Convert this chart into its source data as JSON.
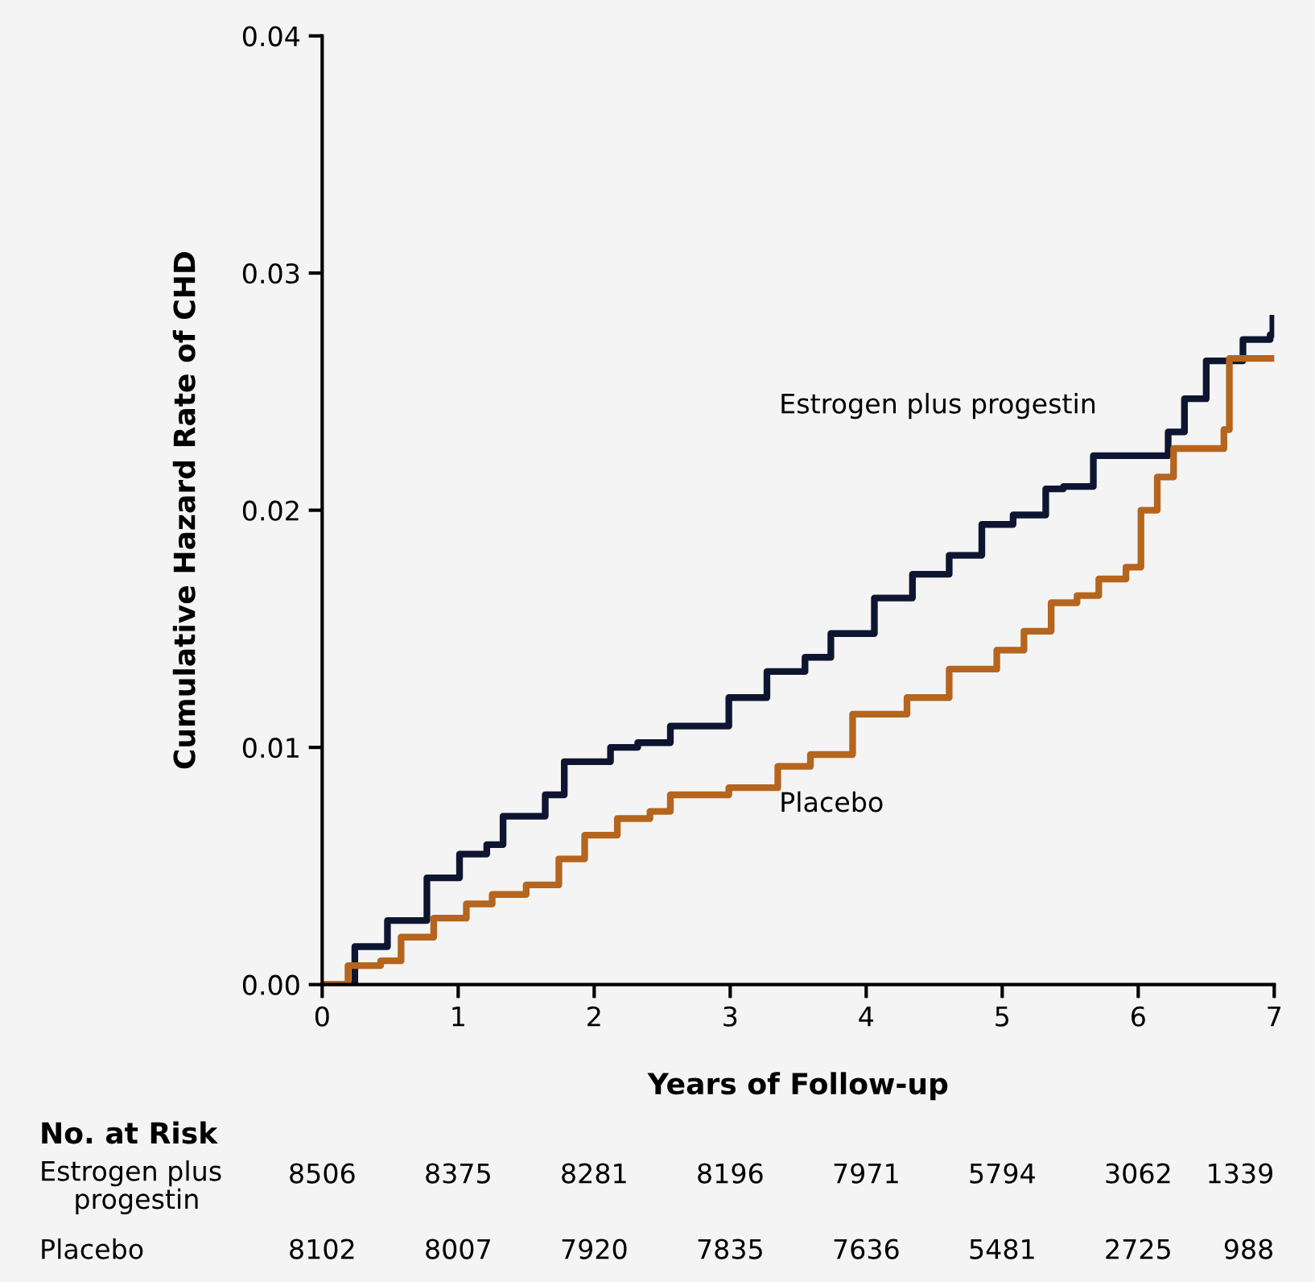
{
  "chart_data": {
    "type": "step",
    "xlabel": "Years of Follow-up",
    "ylabel": "Cumulative Hazard Rate of CHD",
    "xlim": [
      0,
      7
    ],
    "ylim": [
      0,
      0.04
    ],
    "xticks": [
      0,
      1,
      2,
      3,
      4,
      5,
      6,
      7
    ],
    "yticks": [
      {
        "value": 0,
        "label": "0.00"
      },
      0.01,
      0.02,
      0.03,
      0.04
    ],
    "grid": false,
    "legend": false,
    "series": [
      {
        "name": "Estrogen plus progestin",
        "color": "#0d1530",
        "x": [
          0,
          0.24,
          0.48,
          0.77,
          1.01,
          1.21,
          1.33,
          1.45,
          1.64,
          1.78,
          1.98,
          2.12,
          2.32,
          2.56,
          2.8,
          2.99,
          3.27,
          3.55,
          3.74,
          4.06,
          4.34,
          4.61,
          4.85,
          5.08,
          5.32,
          5.45,
          5.67,
          5.99,
          6.22,
          6.34,
          6.5,
          6.67,
          6.77,
          6.97,
          6.99
        ],
        "values": [
          0,
          0.0016,
          0.0027,
          0.0045,
          0.0055,
          0.0059,
          0.0071,
          0.0071,
          0.008,
          0.0094,
          0.0094,
          0.01,
          0.0102,
          0.0109,
          0.0109,
          0.0121,
          0.0132,
          0.0138,
          0.0148,
          0.0163,
          0.0173,
          0.0181,
          0.0194,
          0.0198,
          0.0209,
          0.021,
          0.0223,
          0.0223,
          0.0233,
          0.0247,
          0.0263,
          0.0263,
          0.0272,
          0.0274,
          0.0281
        ]
      },
      {
        "name": "Placebo",
        "color": "#b5651d",
        "x": [
          0,
          0.19,
          0.43,
          0.58,
          0.82,
          1.06,
          1.25,
          1.5,
          1.74,
          1.93,
          2.17,
          2.41,
          2.56,
          2.99,
          3.35,
          3.59,
          3.9,
          4.3,
          4.61,
          4.96,
          5.16,
          5.36,
          5.55,
          5.71,
          5.91,
          6.02,
          6.14,
          6.26,
          6.53,
          6.63,
          6.67,
          6.99
        ],
        "values": [
          0,
          0.0008,
          0.001,
          0.002,
          0.0028,
          0.0034,
          0.0038,
          0.0042,
          0.0053,
          0.0063,
          0.007,
          0.0073,
          0.008,
          0.0083,
          0.0092,
          0.0097,
          0.0114,
          0.0121,
          0.0133,
          0.0141,
          0.0149,
          0.0161,
          0.0164,
          0.0171,
          0.0176,
          0.02,
          0.0214,
          0.0226,
          0.0226,
          0.0234,
          0.0264,
          0.0264
        ]
      }
    ],
    "annotations": [
      "No. at Risk",
      "Estrogen plus\n    progestin",
      "8506",
      "8375",
      "8281",
      "8196",
      "7971",
      "5794",
      "3062",
      "1339",
      "Placebo",
      "8102",
      "8007",
      "7920",
      "7835",
      "7636",
      "5481",
      "2725",
      "988"
    ]
  }
}
